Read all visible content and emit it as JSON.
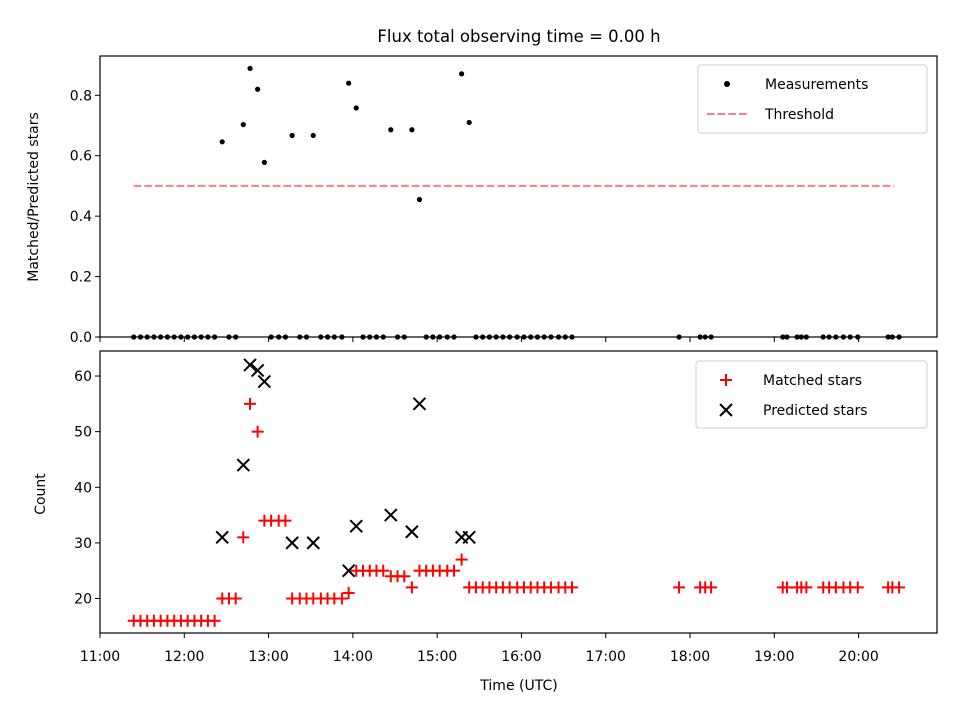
{
  "chart_data": [
    {
      "type": "scatter",
      "title": "Flux total observing time = 0.00 h",
      "xlabel": "",
      "ylabel": "Matched/Predicted stars",
      "xlim": [
        11.0,
        20.93
      ],
      "ylim": [
        0.0,
        0.93
      ],
      "y_ticks": [
        "0.0",
        "0.2",
        "0.4",
        "0.6",
        "0.8"
      ],
      "y_tick_values": [
        0.0,
        0.2,
        0.4,
        0.6,
        0.8
      ],
      "legend_position": "top-right",
      "legend": [
        "Measurements",
        "Threshold"
      ],
      "threshold": {
        "name": "Threshold",
        "y": 0.5,
        "x": [
          11.4,
          20.42
        ],
        "color": "#ff7b7b"
      },
      "measurements": {
        "name": "Measurements",
        "color": "#000000",
        "x": [
          11.4,
          11.48,
          11.56,
          11.64,
          11.72,
          11.8,
          11.88,
          11.96,
          12.04,
          12.12,
          12.2,
          12.28,
          12.36,
          12.45,
          12.53,
          12.61,
          12.7,
          12.78,
          12.87,
          12.95,
          13.03,
          13.12,
          13.2,
          13.28,
          13.37,
          13.45,
          13.53,
          13.62,
          13.7,
          13.78,
          13.87,
          13.95,
          14.04,
          14.12,
          14.2,
          14.28,
          14.36,
          14.45,
          14.53,
          14.61,
          14.7,
          14.79,
          14.87,
          14.95,
          15.03,
          15.12,
          15.2,
          15.29,
          15.38,
          15.46,
          15.54,
          15.62,
          15.7,
          15.78,
          15.86,
          15.95,
          16.03,
          16.11,
          16.19,
          16.27,
          16.35,
          16.44,
          16.52,
          16.6,
          17.87,
          18.12,
          18.18,
          18.25,
          19.1,
          19.15,
          19.27,
          19.32,
          19.38,
          19.58,
          19.65,
          19.73,
          19.82,
          19.9,
          19.99,
          20.35,
          20.4,
          20.48
        ],
        "y": [
          0,
          0,
          0,
          0,
          0,
          0,
          0,
          0,
          0,
          0,
          0,
          0,
          0,
          0.646,
          0,
          0,
          0.703,
          0.889,
          0.82,
          0.578,
          0,
          0,
          0,
          0.667,
          0,
          0,
          0.667,
          0,
          0,
          0,
          0,
          0.84,
          0.758,
          0,
          0,
          0,
          0,
          0.686,
          0,
          0,
          0.686,
          0.455,
          0,
          0,
          0,
          0,
          0,
          0.871,
          0.71,
          0,
          0,
          0,
          0,
          0,
          0,
          0,
          0,
          0,
          0,
          0,
          0,
          0,
          0,
          0,
          0,
          0,
          0,
          0,
          0,
          0,
          0,
          0,
          0,
          0,
          0,
          0,
          0,
          0,
          0,
          0,
          0,
          0
        ]
      }
    },
    {
      "type": "scatter",
      "title": "",
      "xlabel": "Time (UTC)",
      "ylabel": "Count",
      "xlim": [
        11.0,
        20.93
      ],
      "ylim": [
        13.8,
        64.5
      ],
      "y_ticks": [
        "20",
        "30",
        "40",
        "50",
        "60"
      ],
      "y_tick_values": [
        20,
        30,
        40,
        50,
        60
      ],
      "x_ticks": [
        "11:00",
        "12:00",
        "13:00",
        "14:00",
        "15:00",
        "16:00",
        "17:00",
        "18:00",
        "19:00",
        "20:00"
      ],
      "x_tick_values": [
        11,
        12,
        13,
        14,
        15,
        16,
        17,
        18,
        19,
        20
      ],
      "legend_position": "top-right",
      "legend": [
        "Matched stars",
        "Predicted stars"
      ],
      "series": [
        {
          "name": "Matched stars",
          "marker": "+",
          "color": "#ff0000",
          "x": [
            11.4,
            11.48,
            11.56,
            11.64,
            11.72,
            11.8,
            11.88,
            11.96,
            12.04,
            12.12,
            12.2,
            12.28,
            12.36,
            12.45,
            12.53,
            12.61,
            12.7,
            12.78,
            12.87,
            12.95,
            13.03,
            13.12,
            13.2,
            13.28,
            13.37,
            13.45,
            13.53,
            13.62,
            13.7,
            13.78,
            13.87,
            13.95,
            14.04,
            14.12,
            14.2,
            14.28,
            14.36,
            14.45,
            14.53,
            14.61,
            14.7,
            14.79,
            14.87,
            14.95,
            15.03,
            15.12,
            15.2,
            15.29,
            15.38,
            15.46,
            15.54,
            15.62,
            15.7,
            15.78,
            15.86,
            15.95,
            16.03,
            16.11,
            16.19,
            16.27,
            16.35,
            16.44,
            16.52,
            16.6,
            17.87,
            18.12,
            18.18,
            18.25,
            19.1,
            19.15,
            19.27,
            19.32,
            19.38,
            19.58,
            19.65,
            19.73,
            19.82,
            19.9,
            19.99,
            20.35,
            20.4,
            20.48
          ],
          "y": [
            16,
            16,
            16,
            16,
            16,
            16,
            16,
            16,
            16,
            16,
            16,
            16,
            16,
            20,
            20,
            20,
            31,
            55,
            50,
            34,
            34,
            34,
            34,
            20,
            20,
            20,
            20,
            20,
            20,
            20,
            20,
            21,
            25,
            25,
            25,
            25,
            25,
            24,
            24,
            24,
            22,
            25,
            25,
            25,
            25,
            25,
            25,
            27,
            22,
            22,
            22,
            22,
            22,
            22,
            22,
            22,
            22,
            22,
            22,
            22,
            22,
            22,
            22,
            22,
            22,
            22,
            22,
            22,
            22,
            22,
            22,
            22,
            22,
            22,
            22,
            22,
            22,
            22,
            22,
            22,
            22,
            22
          ]
        },
        {
          "name": "Predicted stars",
          "marker": "x",
          "color": "#000000",
          "x": [
            12.45,
            12.7,
            12.78,
            12.87,
            12.95,
            13.28,
            13.53,
            13.95,
            14.04,
            14.45,
            14.7,
            14.79,
            15.29,
            15.38
          ],
          "y": [
            31,
            44,
            62,
            61,
            59,
            30,
            30,
            25,
            33,
            35,
            32,
            55,
            31,
            31
          ]
        }
      ]
    }
  ]
}
